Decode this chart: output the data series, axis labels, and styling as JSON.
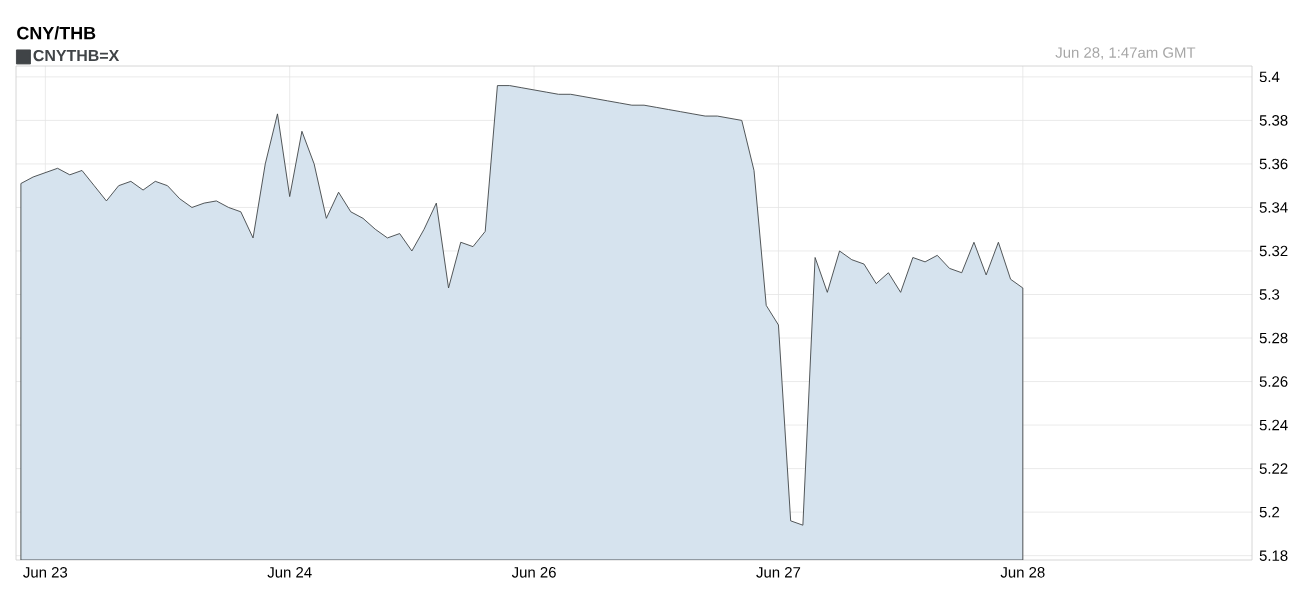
{
  "chart_data": {
    "type": "area",
    "title": "CNY/THB",
    "annotations": [
      "Jun 28, 1:47am GMT"
    ],
    "categories": [
      null,
      null,
      "Jun 23",
      null,
      null,
      null,
      null,
      null,
      null,
      null,
      null,
      null,
      null,
      null,
      null,
      null,
      null,
      null,
      null,
      null,
      null,
      null,
      "Jun 24",
      null,
      null,
      null,
      null,
      null,
      null,
      null,
      null,
      null,
      null,
      null,
      null,
      null,
      null,
      null,
      null,
      null,
      null,
      null,
      "Jun 26",
      null,
      null,
      null,
      null,
      null,
      null,
      null,
      null,
      null,
      null,
      null,
      null,
      null,
      null,
      null,
      null,
      null,
      null,
      null,
      "Jun 27",
      null,
      null,
      null,
      null,
      null,
      null,
      null,
      null,
      null,
      null,
      null,
      null,
      null,
      null,
      null,
      null,
      null,
      null,
      null,
      "Jun 28"
    ],
    "ylim": [
      5.178,
      5.405
    ],
    "yticks": [
      5.18,
      5.2,
      5.22,
      5.24,
      5.26,
      5.28,
      5.3,
      5.32,
      5.34,
      5.36,
      5.38,
      5.4
    ],
    "grid": true,
    "legend": "top left",
    "series": [
      {
        "name": "CNYTHB=X",
        "color": "#d6e3ee",
        "values": [
          5.351,
          5.354,
          5.356,
          5.358,
          5.355,
          5.357,
          5.35,
          5.343,
          5.35,
          5.352,
          5.348,
          5.352,
          5.35,
          5.344,
          5.34,
          5.342,
          5.343,
          5.34,
          5.338,
          5.326,
          5.36,
          5.383,
          5.345,
          5.375,
          5.36,
          5.335,
          5.347,
          5.338,
          5.335,
          5.33,
          5.326,
          5.328,
          5.32,
          5.33,
          5.342,
          5.303,
          5.324,
          5.322,
          5.329,
          5.396,
          5.396,
          5.395,
          5.394,
          5.393,
          5.392,
          5.392,
          5.391,
          5.39,
          5.389,
          5.388,
          5.387,
          5.387,
          5.386,
          5.385,
          5.384,
          5.383,
          5.382,
          5.382,
          5.381,
          5.38,
          5.357,
          5.295,
          5.286,
          5.196,
          5.194,
          5.317,
          5.301,
          5.32,
          5.316,
          5.314,
          5.305,
          5.31,
          5.301,
          5.317,
          5.315,
          5.318,
          5.312,
          5.31,
          5.324,
          5.309,
          5.324,
          5.307,
          5.303
        ]
      }
    ]
  }
}
